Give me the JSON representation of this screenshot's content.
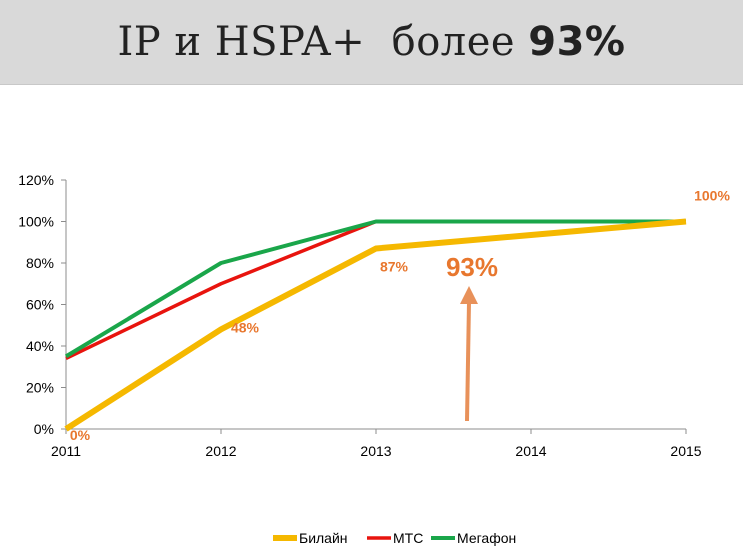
{
  "slide": {
    "title_main": "IP и HSPA+  более ",
    "title_bold": "93%"
  },
  "chart_data": {
    "type": "line",
    "x": [
      "2011",
      "2012",
      "2013",
      "2014",
      "2015"
    ],
    "ylim": [
      0,
      120
    ],
    "yticks": [
      "0%",
      "20%",
      "40%",
      "60%",
      "80%",
      "100%",
      "120%"
    ],
    "grid": false,
    "legend": "bottom",
    "series": [
      {
        "name": "Билайн",
        "color": "#f5b800",
        "values": [
          0,
          48,
          87,
          93.5,
          100
        ]
      },
      {
        "name": "МТС",
        "color": "#e8140e",
        "values": [
          34,
          70,
          100,
          100,
          100
        ]
      },
      {
        "name": "Мегафон",
        "color": "#1aa64a",
        "values": [
          35,
          80,
          100,
          100,
          100
        ]
      }
    ],
    "data_labels": [
      {
        "series": "Билайн",
        "x": "2011",
        "text": "0%"
      },
      {
        "series": "Билайн",
        "x": "2012",
        "text": "48%"
      },
      {
        "series": "Билайн",
        "x": "2013",
        "text": "87%"
      },
      {
        "series": "Билайн",
        "x": "2015",
        "text": "100%"
      }
    ],
    "annotation": {
      "text": "93%",
      "color": "#e8772e"
    }
  }
}
